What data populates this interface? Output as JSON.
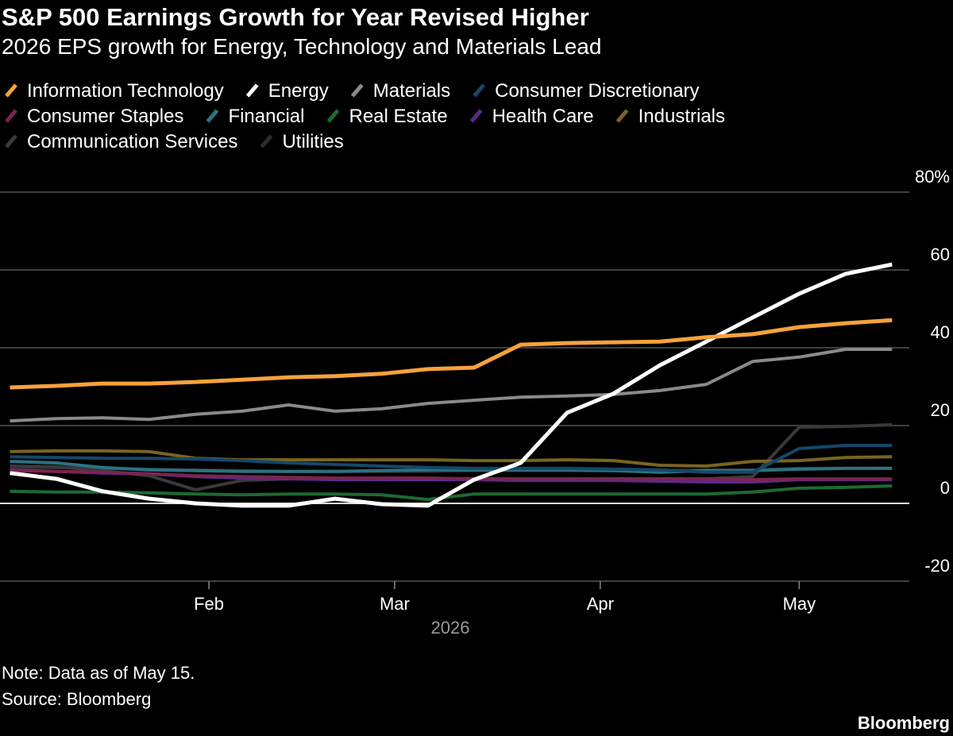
{
  "chart_data": {
    "type": "line",
    "title": "S&P 500 Earnings Growth for Year Revised Higher",
    "subtitle": "2026 EPS growth for Energy, Technology and Materials Lead",
    "x_label": "2026",
    "notes": [
      "Note: Data as of May 15.",
      "Source: Bloomberg"
    ],
    "brand": "Bloomberg",
    "x": [
      2,
      9,
      16,
      23,
      30,
      37,
      44,
      51,
      58,
      65,
      72,
      79,
      86,
      93,
      100,
      107,
      114,
      121,
      128,
      135
    ],
    "xlim": [
      0.5,
      137.6
    ],
    "xticks": [
      {
        "value": 32,
        "label": "Feb"
      },
      {
        "value": 60,
        "label": "Mar"
      },
      {
        "value": 91,
        "label": "Apr"
      },
      {
        "value": 121,
        "label": "May"
      }
    ],
    "ylim": [
      -20,
      80
    ],
    "yticks": [
      -20,
      0,
      20,
      40,
      60,
      {
        "value": 80,
        "label": "80%"
      }
    ],
    "grid": true,
    "series": [
      {
        "name": "Information Technology",
        "color": "#f7a23b",
        "values": [
          29.8,
          30.2,
          30.8,
          30.8,
          31.2,
          31.8,
          32.4,
          32.7,
          33.3,
          34.5,
          34.9,
          40.8,
          41.2,
          41.4,
          41.6,
          42.7,
          43.5,
          45.3,
          46.3,
          47.1
        ]
      },
      {
        "name": "Energy",
        "color": "#ffffff",
        "values": [
          7.8,
          6.3,
          3.1,
          1.2,
          0,
          -0.6,
          -0.6,
          1.2,
          -0.2,
          -0.6,
          6.1,
          10.4,
          23.3,
          28.2,
          35.5,
          41.6,
          47.8,
          53.9,
          59,
          61.4
        ]
      },
      {
        "name": "Materials",
        "color": "#8a8a8a",
        "values": [
          21.2,
          21.8,
          22,
          21.6,
          22.9,
          23.7,
          25.3,
          23.7,
          24.3,
          25.7,
          26.5,
          27.3,
          27.6,
          28,
          29,
          30.6,
          36.5,
          37.6,
          39.6,
          39.6
        ]
      },
      {
        "name": "Consumer Discretionary",
        "color": "#15476a",
        "values": [
          12,
          11.8,
          11.6,
          11.6,
          11.4,
          11,
          10.4,
          10,
          9.6,
          9.2,
          9,
          9,
          9,
          8.8,
          8.6,
          8,
          8,
          14.1,
          14.9,
          14.9
        ]
      },
      {
        "name": "Consumer Staples",
        "color": "#7a2450",
        "values": [
          8.4,
          8.2,
          8,
          7.6,
          7.1,
          6.9,
          6.7,
          6.5,
          6.5,
          6.5,
          6.3,
          6.3,
          6.3,
          6.3,
          6.3,
          6.3,
          6.1,
          6.3,
          6.3,
          6.3
        ]
      },
      {
        "name": "Financial",
        "color": "#2a7383",
        "values": [
          10.8,
          10.4,
          9.2,
          8.6,
          8.4,
          8.2,
          8.2,
          8.2,
          8.4,
          8.6,
          8.6,
          8.6,
          8.6,
          8.4,
          8,
          8.4,
          8.4,
          8.8,
          9,
          9
        ]
      },
      {
        "name": "Real Estate",
        "color": "#1d6a32",
        "values": [
          3.1,
          2.9,
          2.9,
          2.7,
          2.4,
          2.2,
          2.4,
          2.4,
          2.2,
          1,
          2.4,
          2.4,
          2.4,
          2.4,
          2.4,
          2.4,
          2.9,
          3.9,
          4.1,
          4.5
        ]
      },
      {
        "name": "Health Care",
        "color": "#5b2a8c",
        "values": [
          8.6,
          8.2,
          7.8,
          7.6,
          6.9,
          6.5,
          6.3,
          6.1,
          6.1,
          6.1,
          6.1,
          5.9,
          5.9,
          5.9,
          5.7,
          5.5,
          5.5,
          6.1,
          6.1,
          6.1
        ]
      },
      {
        "name": "Industrials",
        "color": "#7a6421",
        "values": [
          13.3,
          13.5,
          13.5,
          13.3,
          11.6,
          11.2,
          11.2,
          11.2,
          11.2,
          11.2,
          11,
          11,
          11.2,
          11,
          9.8,
          9.6,
          10.8,
          11,
          11.8,
          12
        ]
      },
      {
        "name": "Communication Services",
        "color": "#3a3a3a",
        "values": [
          9.6,
          9.4,
          8.4,
          7.1,
          3.5,
          5.9,
          6.3,
          6.3,
          6.3,
          6.3,
          6.3,
          6.3,
          6.3,
          6.3,
          6.3,
          6.3,
          6.9,
          19.6,
          19.8,
          20.2
        ]
      },
      {
        "name": "Utilities",
        "color": "#2c2c2c",
        "values": [
          9.2,
          9.2,
          9,
          8.8,
          8.6,
          8.4,
          8.2,
          8.2,
          8.2,
          8.2,
          8.4,
          8.4,
          8.4,
          8.4,
          8.4,
          8.6,
          8.6,
          9,
          9,
          9
        ]
      }
    ]
  }
}
